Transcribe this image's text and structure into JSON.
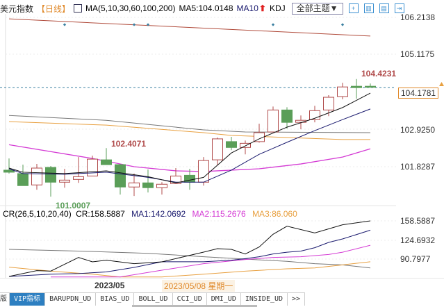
{
  "header": {
    "title": "美元指数",
    "period": "【日线】",
    "ma_params": "MA(5,10,30,60,100,200)",
    "ma5": "MA5:104.0148",
    "ma10": "MA10",
    "kdj": "KDJ",
    "theme_button": "全部主题▼",
    "tool_icons": [
      "crosshair-icon",
      "layout-icon",
      "chart-icon",
      "next-icon"
    ]
  },
  "price_axis": {
    "labels": [
      "106.2138",
      "105.1175",
      "102.9250",
      "101.8287"
    ],
    "current_price": "104.1781",
    "max": 106.2138,
    "min": 101.8287
  },
  "annotations": {
    "high": "104.4231",
    "mid_high": "102.4071",
    "low": "101.0007"
  },
  "cr_header": {
    "params": "CR(26,5,10,20,40)",
    "cr": "CR:158.5887",
    "ma1": "MA1:142.0692",
    "ma2": "MA2:115.2676",
    "ma3": "MA3:86.060"
  },
  "cr_axis": {
    "labels": [
      "158.5887",
      "124.6932",
      "90.7977"
    ]
  },
  "date_axis": {
    "month": "2023/05",
    "selected": "2023/05/08 星期一"
  },
  "tabs": {
    "left_cut": "版",
    "items": [
      "VIP指标",
      "BARUPDN_UD",
      "BIAS_UD",
      "BOLL_UD",
      "CCI_UD",
      "DMI_UD",
      "INSIDE_UD",
      ">>"
    ],
    "selected": 0
  },
  "colors": {
    "up": "#b04a4a",
    "down": "#5a9e58",
    "ma5": "#111111",
    "ma10": "#1a1a6e",
    "ma30": "#d43ad4",
    "ma60": "#e8a040",
    "ma100": "#777777",
    "ma200": "#b04a3a",
    "accent": "#2d7fc1"
  },
  "chart_data": {
    "type": "candlestick",
    "candles": [
      [
        101.77,
        102.11,
        101.67,
        101.71
      ],
      [
        101.67,
        101.93,
        101.32,
        101.32
      ],
      [
        101.34,
        101.95,
        101.2,
        101.83
      ],
      [
        101.85,
        101.89,
        101.0,
        101.42
      ],
      [
        101.42,
        101.81,
        101.26,
        101.48
      ],
      [
        101.5,
        102.15,
        101.4,
        101.58
      ],
      [
        101.6,
        102.19,
        101.6,
        102.09
      ],
      [
        102.07,
        102.41,
        101.93,
        101.93
      ],
      [
        101.93,
        101.95,
        101.06,
        101.28
      ],
      [
        101.28,
        101.67,
        101.02,
        101.4
      ],
      [
        101.4,
        101.79,
        101.12,
        101.26
      ],
      [
        101.26,
        101.42,
        101.06,
        101.36
      ],
      [
        101.38,
        101.83,
        101.38,
        101.6
      ],
      [
        101.62,
        101.81,
        101.2,
        101.42
      ],
      [
        101.42,
        102.15,
        101.32,
        102.05
      ],
      [
        102.07,
        102.72,
        101.93,
        102.68
      ],
      [
        102.6,
        102.74,
        102.35,
        102.43
      ],
      [
        102.43,
        102.63,
        102.23,
        102.55
      ],
      [
        102.6,
        103.12,
        102.57,
        102.86
      ],
      [
        102.88,
        103.62,
        102.88,
        103.52
      ],
      [
        103.52,
        103.6,
        102.98,
        103.16
      ],
      [
        103.16,
        103.36,
        102.96,
        103.22
      ],
      [
        103.24,
        103.64,
        103.16,
        103.5
      ],
      [
        103.52,
        103.95,
        103.34,
        103.89
      ],
      [
        103.91,
        104.31,
        103.83,
        104.19
      ],
      [
        104.21,
        104.42,
        103.85,
        104.17
      ],
      [
        104.21,
        104.29,
        104.18,
        104.18
      ]
    ],
    "ma": {
      "ma5": [
        [
          0,
          101.83
        ],
        [
          1,
          101.71
        ],
        [
          4,
          101.67
        ],
        [
          7,
          101.75
        ],
        [
          10,
          101.58
        ],
        [
          12,
          101.4
        ],
        [
          14,
          101.56
        ],
        [
          16,
          102.27
        ],
        [
          18,
          102.68
        ],
        [
          20,
          103.02
        ],
        [
          22,
          103.28
        ],
        [
          24,
          103.59
        ],
        [
          26,
          104.01
        ]
      ],
      "ma10": [
        [
          0,
          101.81
        ],
        [
          1,
          101.67
        ],
        [
          4,
          101.65
        ],
        [
          7,
          101.71
        ],
        [
          10,
          101.56
        ],
        [
          12,
          101.42
        ],
        [
          14,
          101.42
        ],
        [
          16,
          101.77
        ],
        [
          18,
          102.23
        ],
        [
          20,
          102.58
        ],
        [
          22,
          102.92
        ],
        [
          24,
          103.24
        ],
        [
          26,
          103.55
        ]
      ],
      "ma30": [
        [
          0,
          102.51
        ],
        [
          6,
          102.11
        ],
        [
          9,
          101.87
        ],
        [
          12,
          101.75
        ],
        [
          14,
          101.73
        ],
        [
          15,
          101.75
        ],
        [
          18,
          101.81
        ],
        [
          21,
          101.95
        ],
        [
          24,
          102.15
        ],
        [
          26,
          102.39
        ]
      ],
      "ma60": [
        [
          0,
          103.18
        ],
        [
          7,
          103.08
        ],
        [
          14,
          102.86
        ],
        [
          16,
          102.78
        ],
        [
          20,
          102.72
        ],
        [
          24,
          102.66
        ],
        [
          26,
          102.66
        ]
      ],
      "ma100": [
        [
          0,
          103.36
        ],
        [
          7,
          103.22
        ],
        [
          14,
          102.94
        ],
        [
          17,
          102.88
        ],
        [
          26,
          102.86
        ]
      ],
      "ma200": [
        [
          0,
          106.17
        ],
        [
          26,
          105.67
        ]
      ]
    },
    "signal_dots": [
      4,
      9,
      10,
      19,
      24
    ],
    "cr": {
      "cr": [
        [
          0,
          59.9
        ],
        [
          2,
          70.2
        ],
        [
          3,
          69.4
        ],
        [
          5,
          93.7
        ],
        [
          6,
          85.9
        ],
        [
          7,
          88.7
        ],
        [
          9,
          82.6
        ],
        [
          11,
          85.9
        ],
        [
          14,
          103.1
        ],
        [
          15,
          109.3
        ],
        [
          16,
          108.0
        ],
        [
          17,
          99.8
        ],
        [
          18,
          112.2
        ],
        [
          19,
          134.8
        ],
        [
          20,
          149.1
        ],
        [
          22,
          137.2
        ],
        [
          24,
          151.6
        ],
        [
          26,
          158.59
        ]
      ],
      "ma1": [
        [
          0,
          60
        ],
        [
          3,
          64
        ],
        [
          5,
          65
        ],
        [
          7,
          68
        ],
        [
          9,
          76
        ],
        [
          11,
          86
        ],
        [
          14,
          86
        ],
        [
          16,
          88.7
        ],
        [
          17,
          91.6
        ],
        [
          18,
          94.9
        ],
        [
          19,
          99.8
        ],
        [
          20,
          103
        ],
        [
          21,
          105
        ],
        [
          22,
          111
        ],
        [
          23,
          120.4
        ],
        [
          24,
          126.5
        ],
        [
          26,
          142.07
        ]
      ],
      "ma2": [
        [
          3,
          59
        ],
        [
          8,
          59
        ],
        [
          11,
          71
        ],
        [
          14,
          82.6
        ],
        [
          17,
          90
        ],
        [
          19,
          93.7
        ],
        [
          21,
          94.9
        ],
        [
          23,
          99
        ],
        [
          24,
          103
        ],
        [
          26,
          115.27
        ]
      ],
      "ma3": [
        [
          0,
          76.4
        ],
        [
          3,
          69.4
        ],
        [
          6,
          64
        ],
        [
          8,
          59
        ],
        [
          11,
          59
        ],
        [
          14,
          64
        ],
        [
          17,
          69.4
        ],
        [
          20,
          73.5
        ],
        [
          22,
          75
        ],
        [
          24,
          80.5
        ],
        [
          26,
          86.06
        ]
      ],
      "ref": [
        [
          0,
          108
        ],
        [
          5,
          105
        ],
        [
          10,
          101
        ],
        [
          14,
          95
        ],
        [
          17,
          90.8
        ],
        [
          20,
          86.7
        ],
        [
          22,
          82.6
        ],
        [
          24,
          80.5
        ],
        [
          26,
          75
        ]
      ]
    }
  }
}
